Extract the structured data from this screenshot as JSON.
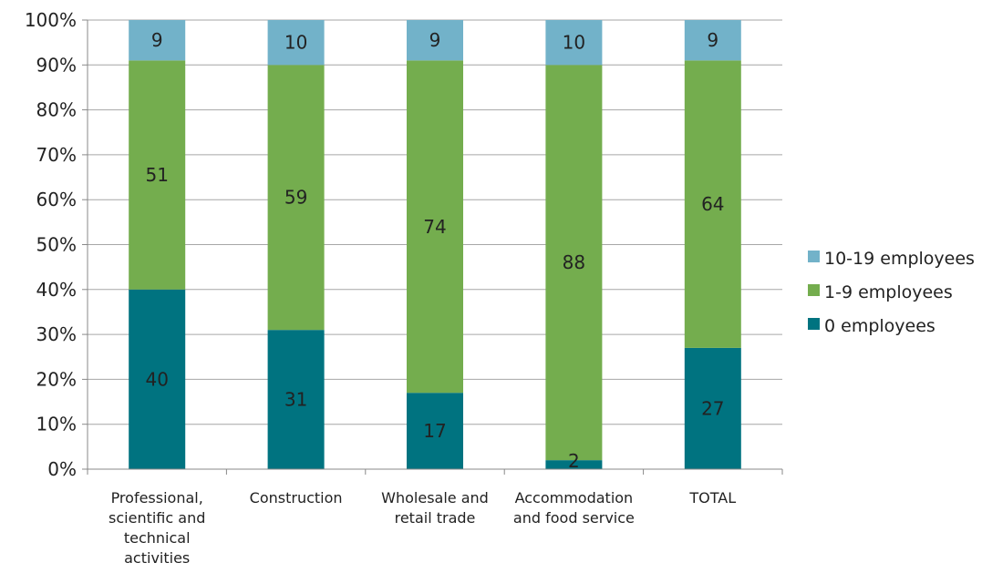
{
  "chart_data": {
    "type": "bar",
    "stacked": true,
    "percent": true,
    "categories": [
      "Professional,\nscientific and\ntechnical\nactivities",
      "Construction",
      "Wholesale and\nretail trade",
      "Accommodation\nand food service",
      "TOTAL"
    ],
    "series": [
      {
        "name": "0 employees",
        "color": "#007380",
        "values": [
          40,
          31,
          17,
          2,
          27
        ]
      },
      {
        "name": "1-9 employees",
        "color": "#74AD4E",
        "values": [
          51,
          59,
          74,
          88,
          64
        ]
      },
      {
        "name": "10-19 employees",
        "color": "#72B2C9",
        "values": [
          9,
          10,
          9,
          10,
          9
        ]
      }
    ],
    "ylim": [
      0,
      100
    ],
    "yticks": [
      "0%",
      "10%",
      "20%",
      "30%",
      "40%",
      "50%",
      "60%",
      "70%",
      "80%",
      "90%",
      "100%"
    ],
    "legend": [
      "10-19 employees",
      "1-9 employees",
      "0 employees"
    ],
    "legend_position": "right",
    "grid": true
  }
}
